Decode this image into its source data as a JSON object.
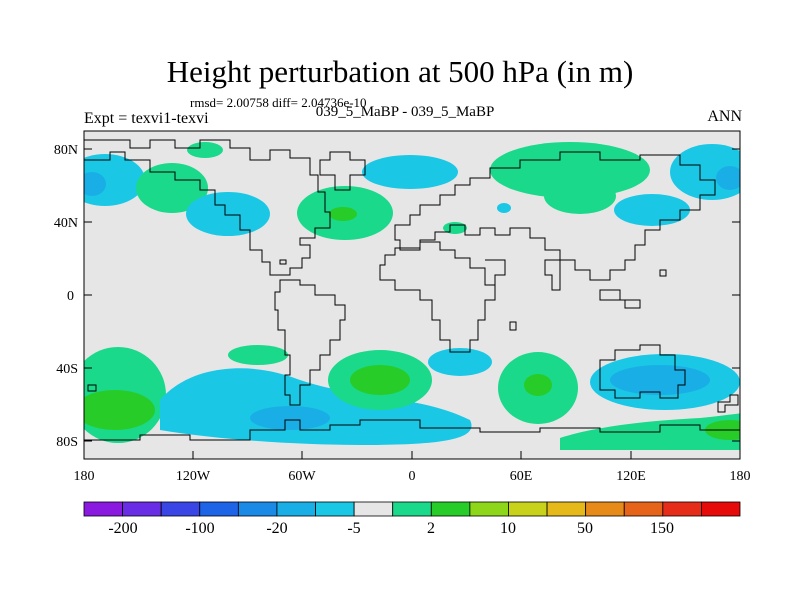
{
  "title": "Height perturbation at 500 hPa (in m)",
  "stats": "rmsd= 2.00758  diff= 2.04736e-10",
  "experiment": "Expt = texvi1-texvi",
  "case_label": "039_5_MaBP - 039_5_MaBP",
  "season": "ANN",
  "lat_labels": [
    "80N",
    "40N",
    "0",
    "40S",
    "80S"
  ],
  "lon_labels": [
    "180",
    "120W",
    "60W",
    "0",
    "60E",
    "120E",
    "180"
  ],
  "colorbar": {
    "colors": [
      "#8b1ae0",
      "#6a2de6",
      "#3a45e6",
      "#1e64e6",
      "#1a8ae6",
      "#1aaee6",
      "#1ac8e6",
      "#e6e6e6",
      "#1ad98a",
      "#28cc28",
      "#8ed61a",
      "#c8d21a",
      "#e6b91a",
      "#e68a1a",
      "#e6641a",
      "#e62d1a",
      "#e60a0a"
    ],
    "labels": [
      "-200",
      "-100",
      "-20",
      "-5",
      "2",
      "10",
      "50",
      "150"
    ]
  },
  "palette": {
    "neutral": "#e6e6e6",
    "light_blue": "#1ac8e6",
    "mid_blue": "#1aaee6",
    "light_green": "#1ad98a",
    "green": "#28cc28"
  }
}
